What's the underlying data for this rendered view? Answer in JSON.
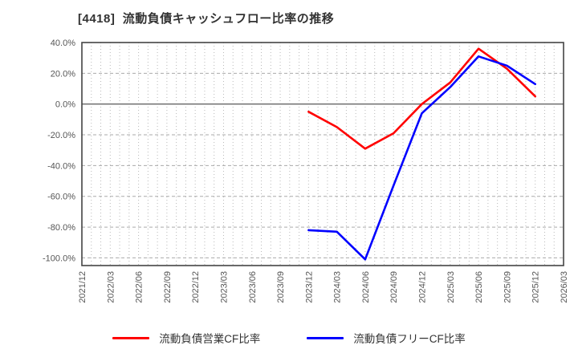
{
  "title": "[4418]  流動負債キャッシュフロー比率の推移",
  "legend": [
    {
      "label": "流動負債営業CF比率",
      "color": "#ff0000"
    },
    {
      "label": "流動負債フリーCF比率",
      "color": "#0000ff"
    }
  ],
  "chart_data": {
    "type": "line",
    "title": "[4418]  流動負債キャッシュフロー比率の推移",
    "categories": [
      "2021/12",
      "2022/03",
      "2022/06",
      "2022/09",
      "2022/12",
      "2023/03",
      "2023/06",
      "2023/09",
      "2023/12",
      "2024/03",
      "2024/06",
      "2024/09",
      "2024/12",
      "2025/03",
      "2025/06",
      "2025/09",
      "2025/12",
      "2026/03"
    ],
    "series": [
      {
        "name": "流動負債営業CF比率",
        "color": "#ff0000",
        "values": [
          null,
          null,
          null,
          null,
          null,
          null,
          null,
          null,
          -5,
          -15,
          -29,
          -19,
          0,
          14,
          36,
          23,
          5,
          null
        ]
      },
      {
        "name": "流動負債フリーCF比率",
        "color": "#0000ff",
        "values": [
          null,
          null,
          null,
          null,
          null,
          null,
          null,
          null,
          -82,
          -83,
          -101,
          -53,
          -6,
          11,
          31,
          25,
          13,
          null
        ]
      }
    ],
    "ylabel": "",
    "xlabel": "",
    "ylim": [
      -105,
      40
    ],
    "yticks": [
      40,
      20,
      0,
      -20,
      -40,
      -60,
      -80,
      -100
    ],
    "ytick_labels": [
      "40.0%",
      "20.0%",
      "0.0%",
      "-20.0%",
      "-40.0%",
      "-60.0%",
      "-80.0%",
      "-100.0%"
    ],
    "grid": true,
    "minor_x_divisions": 3,
    "legend_position": "bottom"
  }
}
